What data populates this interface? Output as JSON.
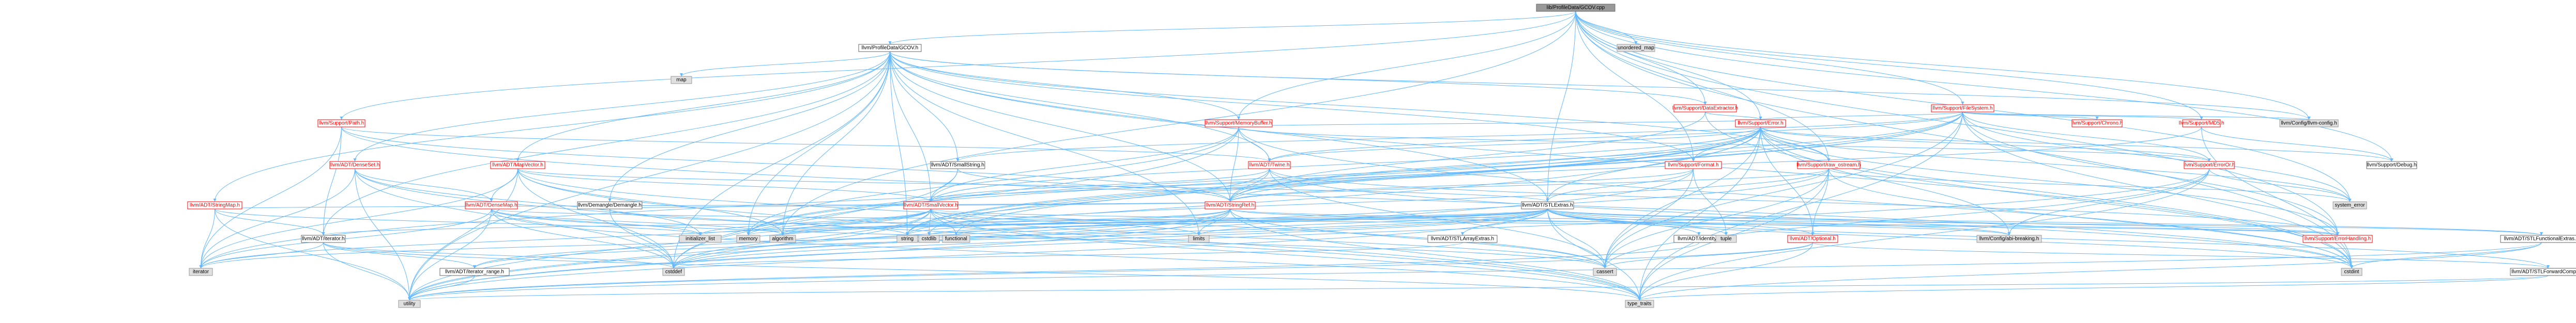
{
  "graph": {
    "colors": {
      "edge": "#63b8ff",
      "red_border": "#ff0000",
      "gray_fill": "#e0e0e0",
      "root_fill": "#999999"
    },
    "nodes": [
      {
        "id": "root",
        "label": "lib/ProfileData/GCOV.cpp",
        "style": "root"
      },
      {
        "id": "gcovh",
        "label": "llvm/ProfileData/GCOV.h",
        "style": "white"
      },
      {
        "id": "map",
        "label": "map",
        "style": "gray"
      },
      {
        "id": "unordered_map",
        "label": "unordered_map",
        "style": "gray"
      },
      {
        "id": "dataext",
        "label": "llvm/Support/DataExtractor.h",
        "style": "red"
      },
      {
        "id": "filesystem",
        "label": "llvm/Support/FileSystem.h",
        "style": "red"
      },
      {
        "id": "path",
        "label": "llvm/Support/Path.h",
        "style": "red"
      },
      {
        "id": "membuf",
        "label": "llvm/Support/MemoryBuffer.h",
        "style": "red"
      },
      {
        "id": "error",
        "label": "llvm/Support/Error.h",
        "style": "red"
      },
      {
        "id": "chrono",
        "label": "llvm/Support/Chrono.h",
        "style": "red"
      },
      {
        "id": "md5",
        "label": "llvm/Support/MD5.h",
        "style": "red"
      },
      {
        "id": "llvmconfig",
        "label": "llvm/Config/llvm-config.h",
        "style": "gray"
      },
      {
        "id": "densemap",
        "label": "llvm/ADT/DenseSet.h",
        "style": "red"
      },
      {
        "id": "mapvector",
        "label": "llvm/ADT/MapVector.h",
        "style": "red"
      },
      {
        "id": "smallstring",
        "label": "llvm/ADT/SmallString.h",
        "style": "white"
      },
      {
        "id": "twine",
        "label": "llvm/ADT/Twine.h",
        "style": "red"
      },
      {
        "id": "format",
        "label": "llvm/Support/Format.h",
        "style": "red"
      },
      {
        "id": "rawostream",
        "label": "llvm/Support/raw_ostream.h",
        "style": "red"
      },
      {
        "id": "errorh",
        "label": "llvm/Support/ErrorOr.h",
        "style": "red"
      },
      {
        "id": "debug",
        "label": "llvm/Support/Debug.h",
        "style": "white"
      },
      {
        "id": "stringmap",
        "label": "llvm/ADT/StringMap.h",
        "style": "red"
      },
      {
        "id": "densemaph",
        "label": "llvm/ADT/DenseMap.h",
        "style": "red"
      },
      {
        "id": "demangle",
        "label": "llvm/Demangle/Demangle.h",
        "style": "white"
      },
      {
        "id": "smallvector",
        "label": "llvm/ADT/SmallVector.h",
        "style": "red"
      },
      {
        "id": "stringref",
        "label": "llvm/ADT/StringRef.h",
        "style": "red"
      },
      {
        "id": "stlextras",
        "label": "llvm/ADT/STLExtras.h",
        "style": "white"
      },
      {
        "id": "systemerror",
        "label": "system_error",
        "style": "gray"
      },
      {
        "id": "iterator",
        "label": "llvm/ADT/iterator.h",
        "style": "white"
      },
      {
        "id": "initlist",
        "label": "initializer_list",
        "style": "gray"
      },
      {
        "id": "memory",
        "label": "memory",
        "style": "gray"
      },
      {
        "id": "algorithm",
        "label": "algorithm",
        "style": "gray"
      },
      {
        "id": "string",
        "label": "string",
        "style": "gray"
      },
      {
        "id": "cstdlib",
        "label": "cstdlib",
        "style": "gray"
      },
      {
        "id": "functional",
        "label": "functional",
        "style": "gray"
      },
      {
        "id": "limits",
        "label": "limits",
        "style": "gray"
      },
      {
        "id": "stlarrayext",
        "label": "llvm/ADT/STLArrayExtras.h",
        "style": "white"
      },
      {
        "id": "identity",
        "label": "llvm/ADT/identity.h",
        "style": "white"
      },
      {
        "id": "tuple",
        "label": "tuple",
        "style": "gray"
      },
      {
        "id": "optional",
        "label": "llvm/ADT/Optional.h",
        "style": "red"
      },
      {
        "id": "abibreak",
        "label": "llvm/Config/abi-breaking.h",
        "style": "gray"
      },
      {
        "id": "errhandling",
        "label": "llvm/Support/ErrorHandling.h",
        "style": "red"
      },
      {
        "id": "stlfuncext",
        "label": "llvm/ADT/STLFunctionalExtras.h",
        "style": "white"
      },
      {
        "id": "stlfwdcompat",
        "label": "llvm/ADT/STLForwardCompat.h",
        "style": "white"
      },
      {
        "id": "iterrange",
        "label": "llvm/ADT/iterator_range.h",
        "style": "white"
      },
      {
        "id": "iteratorstd",
        "label": "iterator",
        "style": "gray"
      },
      {
        "id": "cstddef",
        "label": "cstddef",
        "style": "gray"
      },
      {
        "id": "cassert",
        "label": "cassert",
        "style": "gray"
      },
      {
        "id": "cstdint",
        "label": "cstdint",
        "style": "gray"
      },
      {
        "id": "utility",
        "label": "utility",
        "style": "gray"
      },
      {
        "id": "typetraits",
        "label": "type_traits",
        "style": "gray"
      }
    ]
  }
}
